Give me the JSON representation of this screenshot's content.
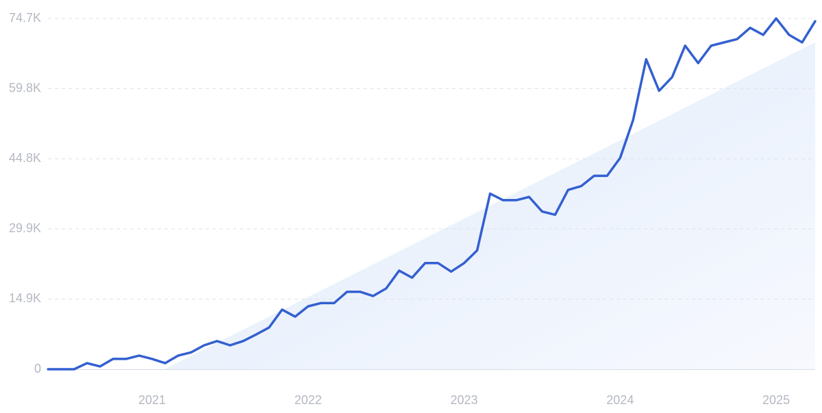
{
  "chart_data": {
    "type": "line",
    "color": "#3360d0",
    "categories": [
      null,
      null,
      null,
      null,
      null,
      null,
      null,
      null,
      "2021",
      null,
      null,
      null,
      null,
      null,
      null,
      null,
      null,
      null,
      null,
      null,
      "2022",
      null,
      null,
      null,
      null,
      null,
      null,
      null,
      null,
      null,
      null,
      null,
      "2023",
      null,
      null,
      null,
      null,
      null,
      null,
      null,
      null,
      null,
      null,
      null,
      "2024",
      null,
      null,
      null,
      null,
      null,
      null,
      null,
      null,
      null,
      null,
      null,
      "2025",
      null,
      null,
      null
    ],
    "values": [
      0,
      0,
      0,
      1300,
      600,
      2200,
      2200,
      2900,
      2200,
      1300,
      2900,
      3600,
      5100,
      6000,
      5100,
      6000,
      7400,
      8900,
      12700,
      11200,
      13400,
      14100,
      14100,
      16500,
      16500,
      15600,
      17200,
      21000,
      19500,
      22600,
      22600,
      20800,
      22600,
      25300,
      37400,
      36000,
      36000,
      36700,
      33600,
      32900,
      38200,
      39000,
      41200,
      41200,
      45000,
      53100,
      66000,
      59300,
      62200,
      68900,
      65200,
      68900,
      69600,
      70300,
      72700,
      71200,
      74700,
      71200,
      69600,
      74100
    ],
    "ylim": [
      0,
      74700
    ],
    "yticks": [
      0,
      {
        "value": 14940,
        "label": "14.9K"
      },
      {
        "value": 29880,
        "label": "29.9K"
      },
      {
        "value": 44820,
        "label": "44.8K"
      },
      {
        "value": 59760,
        "label": "59.8K"
      },
      {
        "value": 74700,
        "label": "74.7K"
      }
    ],
    "grid": true
  }
}
